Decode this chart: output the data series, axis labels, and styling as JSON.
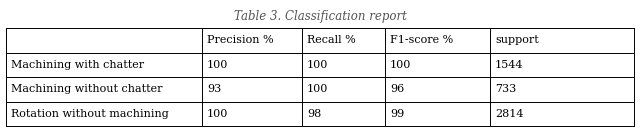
{
  "title": "Table 3. Classification report",
  "col_headers": [
    "",
    "Precision %",
    "Recall %",
    "F1-score %",
    "support"
  ],
  "rows": [
    [
      "Machining with chatter",
      "100",
      "100",
      "100",
      "1544"
    ],
    [
      "Machining without chatter",
      "93",
      "100",
      "96",
      "733"
    ],
    [
      "Rotation without machining",
      "100",
      "98",
      "99",
      "2814"
    ]
  ],
  "background_color": "#ffffff",
  "line_color": "#000000",
  "title_fontsize": 8.5,
  "cell_fontsize": 8.0,
  "title_color": "#555555"
}
